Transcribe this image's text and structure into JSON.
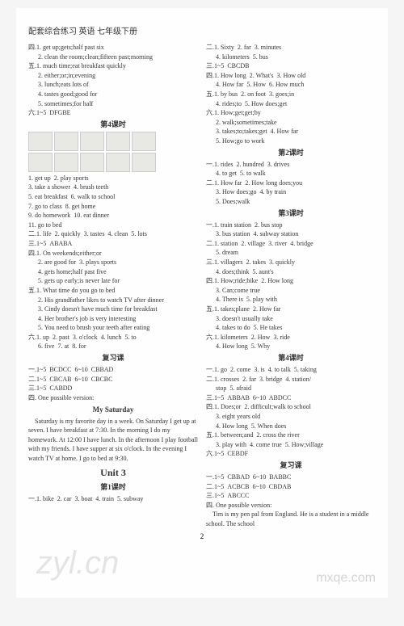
{
  "header": "配套综合练习  英语  七年级下册",
  "page_number": "2",
  "watermarks": {
    "left": "zyl.cn",
    "right": "mxqe.com"
  },
  "left_col": [
    {
      "t": "四.1. get up;gets;half past six"
    },
    {
      "t": "  2. clean the room;clean;fifteen past;morning",
      "i": 1
    },
    {
      "t": "五.1. much time;eat breakfast quickly"
    },
    {
      "t": "  2. either;or;in;evening",
      "i": 1
    },
    {
      "t": "  3. lunch;eats lots of",
      "i": 1
    },
    {
      "t": "  4. tastes good;good for",
      "i": 1
    },
    {
      "t": "  5. sometimes;for half",
      "i": 1
    },
    {
      "t": "六.1~5  DFGBE"
    },
    {
      "t": "第4课时",
      "c": "section-title"
    },
    {
      "t": "__IMGROW__"
    },
    {
      "t": "__IMGROW__"
    },
    {
      "t": "1. get up  2. play sports"
    },
    {
      "t": "3. take a shower  4. brush teeth"
    },
    {
      "t": "5. eat breakfast  6. walk to school"
    },
    {
      "t": "7. go to class  8. get home"
    },
    {
      "t": "9. do homework  10. eat dinner"
    },
    {
      "t": "11. go to bed"
    },
    {
      "t": "二.1. life  2. quickly  3. tastes  4. clean  5. lots"
    },
    {
      "t": "三.1~5  ABABA"
    },
    {
      "t": "四.1. On weekends;either;or"
    },
    {
      "t": "  2. are good for  3. plays sports",
      "i": 1
    },
    {
      "t": "  4. gets home;half past five",
      "i": 1
    },
    {
      "t": "  5. gets up early;is never late for",
      "i": 1
    },
    {
      "t": "五.1. What time do you go to bed"
    },
    {
      "t": "  2. His grandfather likes to watch TV after dinner",
      "i": 1
    },
    {
      "t": "  3. Cindy doesn't have much time for breakfast",
      "i": 1
    },
    {
      "t": "  4. Her brother's job is very interesting",
      "i": 1
    },
    {
      "t": "  5. You need to brush your teeth after eating",
      "i": 1
    },
    {
      "t": "六.1. up  2. past  3. o'clock  4. lunch  5. to"
    },
    {
      "t": "  6. five  7. at  8. for",
      "i": 1
    },
    {
      "t": "复习课",
      "c": "section-title"
    },
    {
      "t": "一.1~5  BCDCC  6~10  CBBAD"
    },
    {
      "t": "二.1~5  CBCAB  6~10  CBCBC"
    },
    {
      "t": "三.1~5  CABDD"
    },
    {
      "t": "四. One possible version:"
    },
    {
      "t": "My Saturday",
      "c": "section-title"
    },
    {
      "t": "    Saturday is my favorite day in a week. On Saturday I get up at seven. I have breakfast at 7:30. In the morning I do my homework. At 12:00 I have lunch. In the afternoon I play football with my friends. I have supper at six o'clock. In the evening I watch TV at home. I go to bed at 9:30."
    },
    {
      "t": "Unit 3",
      "c": "unit-title"
    },
    {
      "t": "第1课时",
      "c": "section-title"
    },
    {
      "t": "一.1. bike  2. car  3. boat  4. train  5. subway"
    }
  ],
  "right_col": [
    {
      "t": "二.1. Sixty  2. far  3. minutes"
    },
    {
      "t": "  4. kilometers  5. bus",
      "i": 1
    },
    {
      "t": "三.1~5  CBCDB"
    },
    {
      "t": "四.1. How long  2. What's  3. How old"
    },
    {
      "t": "  4. How far  5. How  6. How much",
      "i": 1
    },
    {
      "t": "五.1. by bus  2. on foot  3. goes;in"
    },
    {
      "t": "  4. rides;to  5. How does;get",
      "i": 1
    },
    {
      "t": "六.1. How;get;get;by"
    },
    {
      "t": "  2. walk;sometimes;take",
      "i": 1
    },
    {
      "t": "  3. takes;to;takes;get  4. How far",
      "i": 1
    },
    {
      "t": "  5. How;go to work",
      "i": 1
    },
    {
      "t": "第2课时",
      "c": "section-title"
    },
    {
      "t": "一.1. rides  2. hundred  3. drives"
    },
    {
      "t": "  4. to get  5. to walk",
      "i": 1
    },
    {
      "t": "二.1. How far  2. How long does;you"
    },
    {
      "t": "  3. How does;go  4. by train",
      "i": 1
    },
    {
      "t": "  5. Does;walk",
      "i": 1
    },
    {
      "t": "第3课时",
      "c": "section-title"
    },
    {
      "t": "一.1. train station  2. bus stop"
    },
    {
      "t": "  3. bus station  4. subway station",
      "i": 1
    },
    {
      "t": "二.1. station  2. village  3. river  4. bridge"
    },
    {
      "t": "  5. dream",
      "i": 1
    },
    {
      "t": "三.1. villagers  2. takes  3. quickly"
    },
    {
      "t": "  4. does;think  5. aunt's",
      "i": 1
    },
    {
      "t": "四.1. How;ride;bike  2. How long"
    },
    {
      "t": "  3. Can;come true",
      "i": 1
    },
    {
      "t": "  4. There is  5. play with",
      "i": 1
    },
    {
      "t": "五.1. takes;plane  2. How far"
    },
    {
      "t": "  3. doesn't usually take",
      "i": 1
    },
    {
      "t": "  4. takes to do  5. He takes",
      "i": 1
    },
    {
      "t": "六.1. kilometers  2. How  3. ride"
    },
    {
      "t": "  4. How long  5. Why",
      "i": 1
    },
    {
      "t": "第4课时",
      "c": "section-title"
    },
    {
      "t": "一.1. go  2. come  3. is  4. to talk  5. taking"
    },
    {
      "t": "二.1. crosses  2. far  3. bridge  4. station/"
    },
    {
      "t": "  stop  5. afraid",
      "i": 1
    },
    {
      "t": "三.1~5  ABBAB  6~10  ABDCC"
    },
    {
      "t": "四.1. Does;or  2. difficult;walk to school"
    },
    {
      "t": "  3. eight years old",
      "i": 1
    },
    {
      "t": "  4. How long  5. When does",
      "i": 1
    },
    {
      "t": "五.1. between;and  2. cross the river"
    },
    {
      "t": "  3. play with  4. come true  5. How;village",
      "i": 1
    },
    {
      "t": "六.1~5  CEBDF"
    },
    {
      "t": "复习课",
      "c": "section-title"
    },
    {
      "t": "一.1~5  CBBAD  6~10  BABBC"
    },
    {
      "t": "二.1~5  ACBCB  6~10  CBDAB"
    },
    {
      "t": "三.1~5  ABCCC"
    },
    {
      "t": "四. One possible version:"
    },
    {
      "t": "    Tim is my pen pal from England. He is a student in a middle school. The school"
    }
  ]
}
